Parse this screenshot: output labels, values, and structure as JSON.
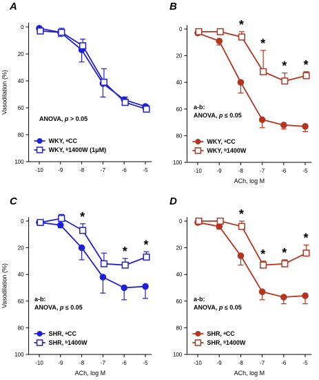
{
  "chart_data": [
    {
      "type": "line",
      "panel": "A",
      "ylabel": "Vasodilation (%)",
      "xlabel": "",
      "x": [
        -10,
        -9,
        -8,
        -7,
        -6,
        -5
      ],
      "xlim": [
        -10.5,
        -4.7
      ],
      "ylim": [
        0,
        100
      ],
      "y_inverted": true,
      "color": "#1f1fd6",
      "series": [
        {
          "name": "WKY, ᵃCC",
          "marker": "filled-circle",
          "values": [
            1,
            4,
            17,
            42,
            54,
            59
          ],
          "errors": [
            1.5,
            3,
            9,
            10,
            4,
            2
          ]
        },
        {
          "name": "WKY, ᵇ1400W (1μM)",
          "marker": "open-square",
          "values": [
            3,
            4,
            14,
            41,
            56,
            61
          ],
          "errors": [
            1.5,
            3,
            5,
            10,
            4,
            3
          ]
        }
      ],
      "annotation_lines": [
        "ANOVA, p > 0.05"
      ],
      "asterisks_at_x": [],
      "legend": "bottom-left"
    },
    {
      "type": "line",
      "panel": "B",
      "ylabel": "",
      "xlabel": "ACh, log M",
      "x": [
        -10,
        -9,
        -8,
        -7,
        -6,
        -5
      ],
      "xlim": [
        -10.5,
        -4.7
      ],
      "ylim": [
        0,
        100
      ],
      "y_inverted": true,
      "color": "#b5341f",
      "series": [
        {
          "name": "WKY, ᵃCC",
          "marker": "filled-circle",
          "values": [
            3,
            9,
            40,
            68,
            72,
            73
          ],
          "errors": [
            1.5,
            3,
            8,
            6,
            3,
            4
          ]
        },
        {
          "name": "WKY, ᵇ1400W",
          "marker": "open-square",
          "values": [
            2,
            2,
            6,
            32,
            39,
            35
          ],
          "errors": [
            1.5,
            1.5,
            4,
            16,
            6,
            3
          ]
        }
      ],
      "annotation_lines": [
        "a-b:",
        "ANOVA, p ≤ 0.05"
      ],
      "asterisks_at_x": [
        -8,
        -7,
        -6,
        -5
      ],
      "legend": "bottom-left"
    },
    {
      "type": "line",
      "panel": "C",
      "ylabel": "Vasodilation (%)",
      "xlabel": "ACh, log M",
      "x": [
        -10,
        -9,
        -8,
        -7,
        -6,
        -5
      ],
      "xlim": [
        -10.5,
        -4.7
      ],
      "ylim": [
        0,
        100
      ],
      "y_inverted": true,
      "color": "#1f1fd6",
      "series": [
        {
          "name": "SHR, ᵃCC",
          "marker": "filled-circle",
          "values": [
            1,
            3,
            20,
            42,
            50,
            49
          ],
          "errors": [
            1.5,
            2,
            9,
            12,
            9,
            9
          ]
        },
        {
          "name": "SHR, ᵇ1400W",
          "marker": "open-square",
          "values": [
            1,
            -2,
            7,
            32,
            33,
            27
          ],
          "errors": [
            1.5,
            3,
            5,
            8,
            5,
            4
          ]
        }
      ],
      "annotation_lines": [
        "a-b:",
        "ANOVA, p ≤ 0.05"
      ],
      "asterisks_at_x": [
        -8,
        -6,
        -5
      ],
      "legend": "bottom-left"
    },
    {
      "type": "line",
      "panel": "D",
      "ylabel": "",
      "xlabel": "ACh, log M",
      "x": [
        -10,
        -9,
        -8,
        -7,
        -6,
        -5
      ],
      "xlim": [
        -10.5,
        -4.7
      ],
      "ylim": [
        0,
        100
      ],
      "y_inverted": true,
      "color": "#b5341f",
      "series": [
        {
          "name": "SHR, ᵃCC",
          "marker": "filled-circle",
          "values": [
            1,
            4,
            26,
            53,
            57,
            56
          ],
          "errors": [
            1.5,
            2,
            7,
            6,
            5,
            6
          ]
        },
        {
          "name": "SHR, ᵇ1400W",
          "marker": "open-square",
          "values": [
            0,
            0,
            4,
            33,
            32,
            24
          ],
          "errors": [
            1.5,
            1.5,
            4,
            3,
            3,
            6
          ]
        }
      ],
      "annotation_lines": [
        "a-b:",
        "ANOVA, p ≤ 0.05"
      ],
      "asterisks_at_x": [
        -8,
        -7,
        -6,
        -5
      ],
      "legend": "bottom-left"
    }
  ]
}
